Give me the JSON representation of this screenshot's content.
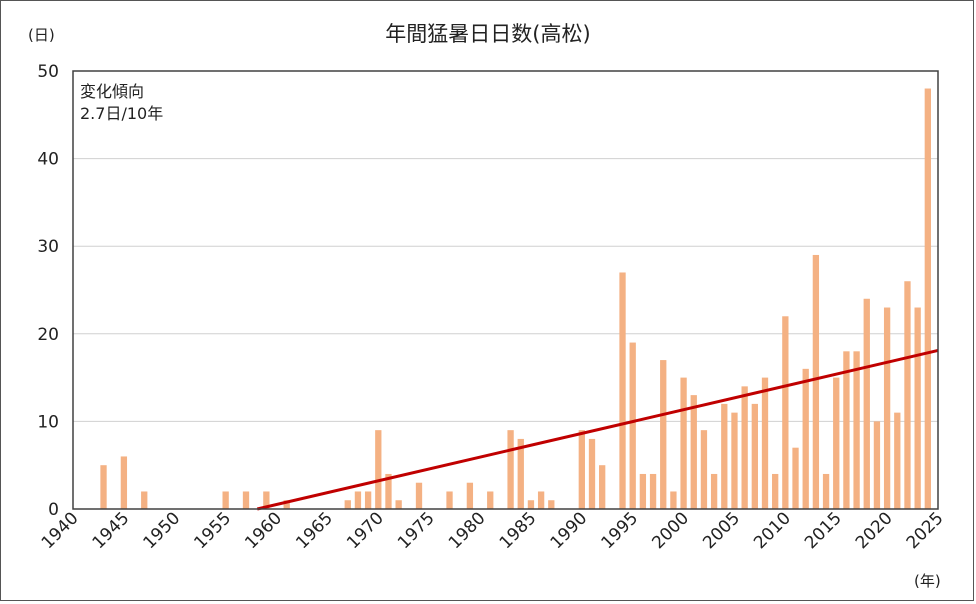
{
  "chart_data": {
    "type": "bar",
    "title": "年間猛暑日日数(高松)",
    "ylabel": "(日)",
    "xlabel": "(年)",
    "ylim": [
      0,
      50
    ],
    "yticks": [
      0,
      10,
      20,
      30,
      40,
      50
    ],
    "xlim": [
      1940,
      2025
    ],
    "xticks": [
      1940,
      1945,
      1950,
      1955,
      1960,
      1965,
      1970,
      1975,
      1980,
      1985,
      1990,
      1995,
      2000,
      2005,
      2010,
      2015,
      2020,
      2025
    ],
    "grid": true,
    "annotation": {
      "title": "変化傾向",
      "value": "2.7日/10年"
    },
    "trend": {
      "x": [
        1940,
        2025
      ],
      "y": [
        -4.9,
        18.1
      ]
    },
    "years": [
      1943,
      1944,
      1945,
      1946,
      1947,
      1948,
      1949,
      1950,
      1951,
      1952,
      1953,
      1954,
      1955,
      1956,
      1957,
      1958,
      1959,
      1960,
      1961,
      1962,
      1963,
      1964,
      1965,
      1966,
      1967,
      1968,
      1969,
      1970,
      1971,
      1972,
      1973,
      1974,
      1975,
      1976,
      1977,
      1978,
      1979,
      1980,
      1981,
      1982,
      1983,
      1984,
      1985,
      1986,
      1987,
      1988,
      1989,
      1990,
      1991,
      1992,
      1993,
      1994,
      1995,
      1996,
      1997,
      1998,
      1999,
      2000,
      2001,
      2002,
      2003,
      2004,
      2005,
      2006,
      2007,
      2008,
      2009,
      2010,
      2011,
      2012,
      2013,
      2014,
      2015,
      2016,
      2017,
      2018,
      2019,
      2020,
      2021,
      2022,
      2023,
      2024,
      2025
    ],
    "values": [
      5,
      0,
      6,
      0,
      2,
      0,
      0,
      0,
      0,
      0,
      0,
      0,
      2,
      0,
      2,
      0,
      2,
      0,
      1,
      0,
      0,
      0,
      0,
      0,
      1,
      2,
      2,
      9,
      4,
      1,
      0,
      3,
      0,
      0,
      2,
      0,
      3,
      0,
      2,
      0,
      9,
      8,
      1,
      2,
      1,
      0,
      0,
      9,
      8,
      5,
      0,
      27,
      19,
      4,
      4,
      17,
      2,
      15,
      13,
      9,
      4,
      12,
      11,
      14,
      12,
      15,
      4,
      22,
      7,
      16,
      29,
      4,
      15,
      18,
      18,
      24,
      10,
      23,
      11,
      26,
      23,
      48,
      0
    ]
  },
  "colors": {
    "bar": "#f4b183",
    "trend": "#c00000",
    "grid": "#d0d0d0",
    "axis": "#404040"
  }
}
